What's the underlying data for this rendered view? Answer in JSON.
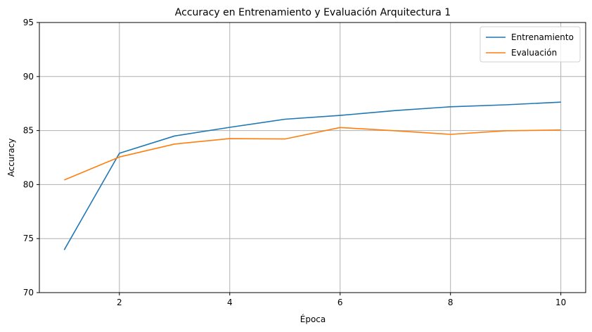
{
  "chart_data": {
    "type": "line",
    "title": "Accuracy en Entrenamiento y Evaluación Arquitectura 1",
    "xlabel": "Época",
    "ylabel": "Accuracy",
    "xlim": [
      0.55,
      10.45
    ],
    "ylim": [
      70,
      95
    ],
    "xticks": [
      2,
      4,
      6,
      8,
      10
    ],
    "yticks": [
      70,
      75,
      80,
      85,
      90,
      95
    ],
    "grid": true,
    "legend_position": "top-right",
    "x": [
      1,
      2,
      3,
      4,
      5,
      6,
      7,
      8,
      9,
      10
    ],
    "series": [
      {
        "name": "Entrenamiento",
        "color": "#1f77b4",
        "values": [
          73.95,
          82.9,
          84.5,
          85.3,
          86.05,
          86.4,
          86.85,
          87.2,
          87.38,
          87.63
        ]
      },
      {
        "name": "Evaluación",
        "color": "#ff7f0e",
        "values": [
          80.42,
          82.55,
          83.75,
          84.25,
          84.22,
          85.28,
          84.98,
          84.65,
          84.98,
          85.05
        ]
      }
    ]
  }
}
